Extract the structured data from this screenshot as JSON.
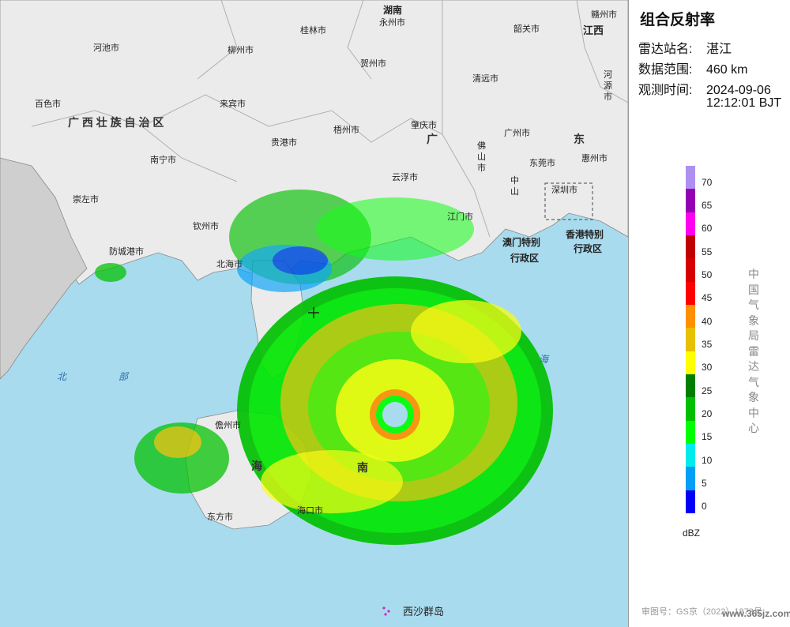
{
  "panel": {
    "title": "组合反射率",
    "station_label": "雷达站名:",
    "station_value": "湛江",
    "range_label": "数据范围:",
    "range_value": "460 km",
    "time_label": "观测时间:",
    "time_date": "2024-09-06",
    "time_clock": "12:12:01 BJT"
  },
  "legend": {
    "ticks": [
      "70",
      "65",
      "60",
      "55",
      "50",
      "45",
      "40",
      "35",
      "30",
      "25",
      "20",
      "15",
      "10",
      "5",
      "0"
    ],
    "unit": "dBZ",
    "colors": [
      "#ad90f0",
      "#9600b4",
      "#ff00f0",
      "#c00000",
      "#d60000",
      "#ff0000",
      "#ff9000",
      "#e7c000",
      "#ffff00",
      "#008000",
      "#00c000",
      "#00ff00",
      "#00ecec",
      "#01a0f6",
      "#0000f6"
    ],
    "org_text": "中国气象局雷达气象中心"
  },
  "footer": {
    "review": "审图号：GS京（2022）1873号",
    "watermark": "www.365jz.com"
  },
  "map": {
    "labels": {
      "hechi": "河池市",
      "liuzhou": "柳州市",
      "guilin": "桂林市",
      "yongzhou": "永州市",
      "hunan": "湖南",
      "ganzhou": "赣州市",
      "jiangxi": "江西",
      "shaoguan": "韶关市",
      "hezhou": "贺州市",
      "qingyuan": "清远市",
      "heyuan": "河源市",
      "baise": "百色市",
      "laibin": "来宾市",
      "guangxi": "广 西 壮 族 自 治 区",
      "wuzhou": "梧州市",
      "zhaoqing": "肇庆市",
      "guangzhou": "广州市",
      "guigang": "贵港市",
      "guang": "广",
      "dong": "东",
      "foshan": "佛山市",
      "huizhou": "惠州市",
      "nanning": "南宁市",
      "yunfu": "云浮市",
      "dongguan": "东莞市",
      "chongzuo": "崇左市",
      "zhongshan": "中山",
      "shenzhen": "深圳市",
      "qinzhou": "钦州市",
      "jiangmen": "江门市",
      "fangcheng": "防城港市",
      "macau": "澳门特别",
      "macau2": "行政区",
      "hongkong": "香港特别",
      "hongkong2": "行政区",
      "beihai": "北海市",
      "danzhou": "儋州市",
      "hai": "海",
      "nan": "南",
      "haikou": "海口市",
      "dongfang": "东方市",
      "xisha": "西沙群岛",
      "beibu1": "北",
      "beibu2": "部",
      "nanhai": "海"
    }
  }
}
